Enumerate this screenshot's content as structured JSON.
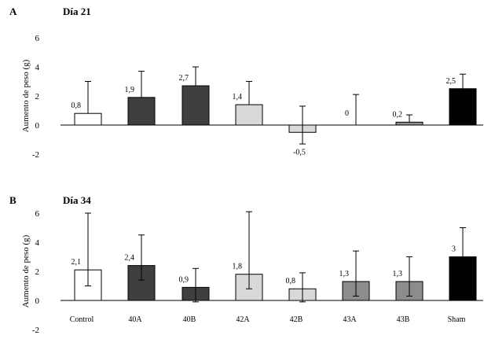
{
  "chart_data": [
    {
      "type": "bar",
      "panel": "A",
      "title": "Día 21",
      "ylabel": "Aumento de peso (g)",
      "xlabel": "",
      "ylim": [
        -2,
        6
      ],
      "yticks": [
        "6",
        "4",
        "2",
        "0",
        "-2"
      ],
      "categories": [
        "Control",
        "40A",
        "40B",
        "42A",
        "42B",
        "43A",
        "43B",
        "Sham"
      ],
      "values": [
        0.8,
        1.9,
        2.7,
        1.4,
        -0.5,
        0,
        0.2,
        2.5
      ],
      "value_labels": [
        "0,8",
        "1,9",
        "2,7",
        "1,4",
        "-0,5",
        "0",
        "0,2",
        "2,5"
      ],
      "error": [
        {
          "up": 3.0,
          "down": null
        },
        {
          "up": 3.7,
          "down": null
        },
        {
          "up": 4.0,
          "down": null
        },
        {
          "up": 3.0,
          "down": null
        },
        {
          "up": 1.3,
          "down": -1.3
        },
        {
          "up": 2.1,
          "down": null
        },
        {
          "up": 0.7,
          "down": null
        },
        {
          "up": 3.5,
          "down": null
        }
      ],
      "colors": [
        "#ffffff",
        "#3f3f3f",
        "#3f3f3f",
        "#d9d9d9",
        "#d9d9d9",
        "#8c8c8c",
        "#8c8c8c",
        "#000000"
      ],
      "show_category_labels": false
    },
    {
      "type": "bar",
      "panel": "B",
      "title": "Día 34",
      "ylabel": "Aumento de peso (g)",
      "xlabel": "",
      "ylim": [
        -2,
        6
      ],
      "yticks": [
        "6",
        "4",
        "2",
        "0",
        "-2"
      ],
      "categories": [
        "Control",
        "40A",
        "40B",
        "42A",
        "42B",
        "43A",
        "43B",
        "Sham"
      ],
      "values": [
        2.1,
        2.4,
        0.9,
        1.8,
        0.8,
        1.3,
        1.3,
        3.0
      ],
      "value_labels": [
        "2,1",
        "2,4",
        "0,9",
        "1,8",
        "0,8",
        "1,3",
        "1,3",
        "3"
      ],
      "error": [
        {
          "up": 6.0,
          "down": 1.0
        },
        {
          "up": 4.5,
          "down": 1.4
        },
        {
          "up": 2.2,
          "down": -0.1
        },
        {
          "up": 6.1,
          "down": 0.8
        },
        {
          "up": 1.9,
          "down": -0.1
        },
        {
          "up": 3.4,
          "down": 0.3
        },
        {
          "up": 3.0,
          "down": 0.3
        },
        {
          "up": 5.0,
          "down": 1.7
        }
      ],
      "colors": [
        "#ffffff",
        "#3f3f3f",
        "#3f3f3f",
        "#d9d9d9",
        "#d9d9d9",
        "#8c8c8c",
        "#8c8c8c",
        "#000000"
      ],
      "show_category_labels": true
    }
  ]
}
